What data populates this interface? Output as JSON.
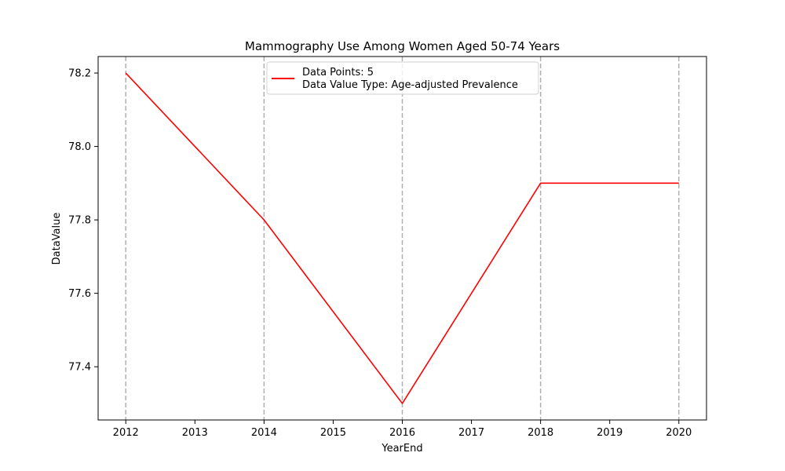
{
  "chart_data": {
    "type": "line",
    "title": "Mammography Use Among Women Aged 50-74 Years",
    "xlabel": "YearEnd",
    "ylabel": "DataValue",
    "x": [
      2012,
      2014,
      2016,
      2018,
      2020
    ],
    "series": [
      {
        "name": "Data Points: 5",
        "name_line2": "Data Value Type: Age-adjusted Prevalence",
        "values": [
          78.2,
          77.8,
          77.3,
          77.9,
          77.9
        ],
        "color": "#ff0000"
      }
    ],
    "xlim": [
      2011.6,
      2020.4
    ],
    "ylim": [
      77.255,
      78.245
    ],
    "xticks": [
      2012,
      2013,
      2014,
      2015,
      2016,
      2017,
      2018,
      2019,
      2020
    ],
    "yticks": [
      77.4,
      77.6,
      77.8,
      78.0,
      78.2
    ],
    "ytick_labels": [
      "77.4",
      "77.6",
      "77.8",
      "78.0",
      "78.2"
    ],
    "vertical_gridlines_at": [
      2012,
      2014,
      2016,
      2018,
      2020
    ],
    "grid": "vertical dashed gray at data x positions",
    "legend_position": "upper center"
  }
}
